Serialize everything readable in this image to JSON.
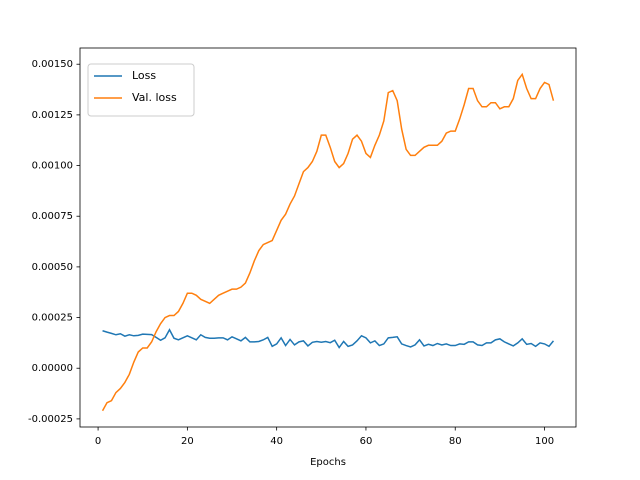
{
  "chart_data": {
    "type": "line",
    "xlabel": "Epochs",
    "x": [
      1,
      2,
      3,
      4,
      5,
      6,
      7,
      8,
      9,
      10,
      11,
      12,
      13,
      14,
      15,
      16,
      17,
      18,
      19,
      20,
      21,
      22,
      23,
      24,
      25,
      26,
      27,
      28,
      29,
      30,
      31,
      32,
      33,
      34,
      35,
      36,
      37,
      38,
      39,
      40,
      41,
      42,
      43,
      44,
      45,
      46,
      47,
      48,
      49,
      50,
      51,
      52,
      53,
      54,
      55,
      56,
      57,
      58,
      59,
      60,
      61,
      62,
      63,
      64,
      65,
      66,
      67,
      68,
      69,
      70,
      71,
      72,
      73,
      74,
      75,
      76,
      77,
      78,
      79,
      80,
      81,
      82,
      83,
      84,
      85,
      86,
      87,
      88,
      89,
      90,
      91,
      92,
      93,
      94,
      95,
      96,
      97,
      98,
      99,
      100,
      101,
      102
    ],
    "series": [
      {
        "name": "Loss",
        "color": "#1f77b4",
        "values": [
          0.000185,
          0.000178,
          0.000172,
          0.000165,
          0.00017,
          0.000158,
          0.000165,
          0.00016,
          0.000162,
          0.000168,
          0.000167,
          0.000166,
          0.000152,
          0.000138,
          0.00015,
          0.00019,
          0.000148,
          0.00014,
          0.00015,
          0.00016,
          0.00015,
          0.00014,
          0.000165,
          0.000152,
          0.000148,
          0.000148,
          0.00015,
          0.00015,
          0.00014,
          0.000155,
          0.000145,
          0.000135,
          0.000152,
          0.00013,
          0.00013,
          0.000132,
          0.00014,
          0.000152,
          0.000108,
          0.00012,
          0.00015,
          0.000112,
          0.000142,
          0.000115,
          0.00013,
          0.000135,
          0.00011,
          0.000128,
          0.000132,
          0.000128,
          0.000132,
          0.000126,
          0.000138,
          0.000102,
          0.000132,
          0.000108,
          0.000115,
          0.000135,
          0.00016,
          0.00015,
          0.000125,
          0.000135,
          0.000112,
          0.00012,
          0.00015,
          0.000152,
          0.000155,
          0.00012,
          0.000112,
          0.000105,
          0.000115,
          0.00014,
          0.00011,
          0.000118,
          0.000112,
          0.000122,
          0.000115,
          0.00012,
          0.000112,
          0.000112,
          0.00012,
          0.000118,
          0.00013,
          0.00013,
          0.000115,
          0.000112,
          0.000125,
          0.000125,
          0.00014,
          0.000145,
          0.00013,
          0.00012,
          0.00011,
          0.000125,
          0.000145,
          0.000118,
          0.000122,
          0.000108,
          0.000125,
          0.00012,
          0.000108,
          0.000135
        ]
      },
      {
        "name": "Val. loss",
        "color": "#ff7f0e",
        "values": [
          -0.00021,
          -0.00017,
          -0.00016,
          -0.00012,
          -0.0001,
          -7e-05,
          -3e-05,
          3e-05,
          8e-05,
          0.0001,
          0.0001,
          0.00013,
          0.00018,
          0.00022,
          0.00025,
          0.00026,
          0.00026,
          0.00028,
          0.00032,
          0.00037,
          0.00037,
          0.00036,
          0.00034,
          0.00033,
          0.00032,
          0.00034,
          0.00036,
          0.00037,
          0.00038,
          0.00039,
          0.00039,
          0.0004,
          0.00042,
          0.00047,
          0.00053,
          0.00058,
          0.00061,
          0.00062,
          0.00063,
          0.00068,
          0.00073,
          0.00076,
          0.00081,
          0.00085,
          0.00091,
          0.00097,
          0.00099,
          0.00102,
          0.00107,
          0.00115,
          0.00115,
          0.00109,
          0.00102,
          0.00099,
          0.00101,
          0.00106,
          0.00113,
          0.00115,
          0.00112,
          0.00106,
          0.00104,
          0.0011,
          0.00115,
          0.00122,
          0.00136,
          0.00137,
          0.00132,
          0.00118,
          0.00108,
          0.00105,
          0.00105,
          0.00107,
          0.00109,
          0.0011,
          0.0011,
          0.0011,
          0.00112,
          0.00116,
          0.00117,
          0.00117,
          0.00123,
          0.0013,
          0.00138,
          0.00138,
          0.00132,
          0.00129,
          0.00129,
          0.00131,
          0.00131,
          0.00128,
          0.00129,
          0.00129,
          0.00133,
          0.00142,
          0.00145,
          0.00138,
          0.00133,
          0.00133,
          0.00138,
          0.00141,
          0.0014,
          0.00132
        ]
      }
    ],
    "xlim": [
      -4.05,
      107.05
    ],
    "xticks": [
      0,
      20,
      40,
      60,
      80,
      100
    ],
    "ylim": [
      -0.00029,
      0.00158
    ],
    "yticks": [
      {
        "value": -0.00025,
        "label": "-0.00025"
      },
      {
        "value": 0,
        "label": "0.00000"
      },
      {
        "value": 0.00025,
        "label": "0.00025"
      },
      {
        "value": 0.0005,
        "label": "0.00050"
      },
      {
        "value": 0.00075,
        "label": "0.00075"
      },
      {
        "value": 0.001,
        "label": "0.00100"
      },
      {
        "value": 0.00125,
        "label": "0.00125"
      },
      {
        "value": 0.0015,
        "label": "0.00150"
      }
    ],
    "legend": "upper left"
  }
}
